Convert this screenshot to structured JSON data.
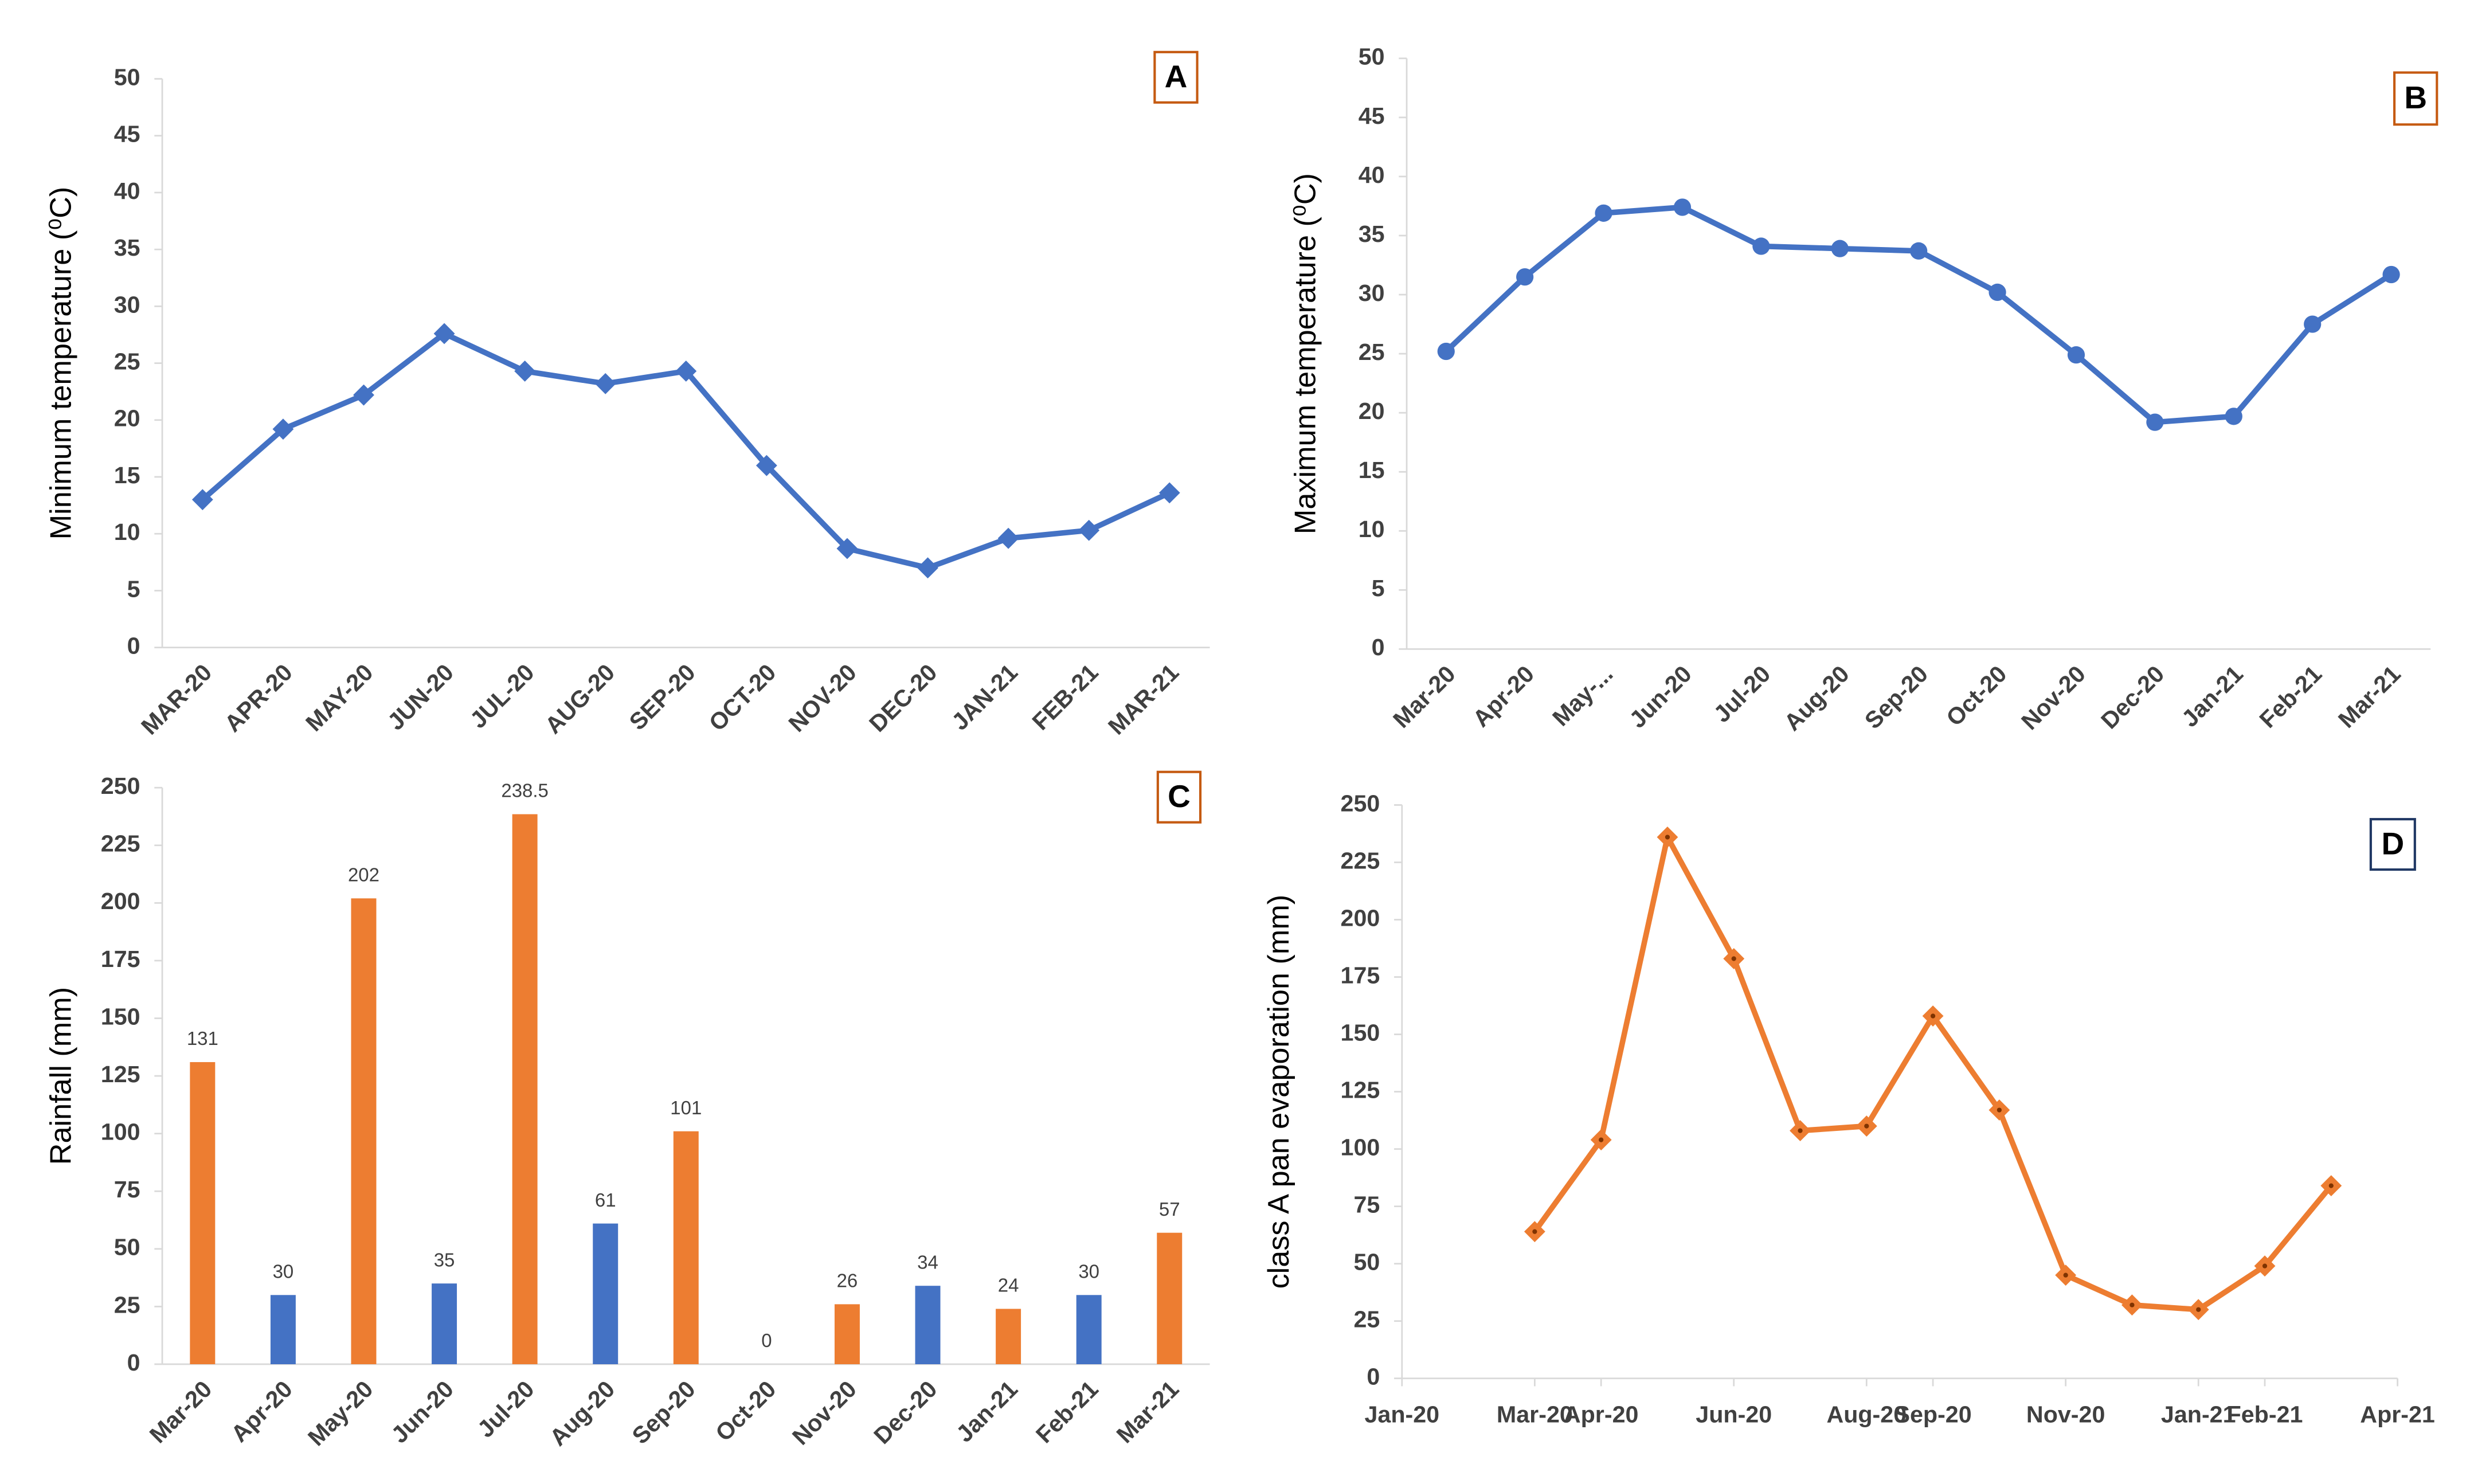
{
  "chart_data": [
    {
      "type": "line",
      "label": "A",
      "y_label": "Minimum temperature (⁰C)",
      "marker": "diamond",
      "color": "#4472c4",
      "categories": [
        "MAR-20",
        "APR-20",
        "MAY-20",
        "JUN-20",
        "JUL-20",
        "AUG-20",
        "SEP-20",
        "OCT-20",
        "NOV-20",
        "DEC-20",
        "JAN-21",
        "FEB-21",
        "MAR-21"
      ],
      "values": [
        13,
        19.2,
        22.2,
        27.6,
        24.3,
        23.2,
        24.3,
        16,
        8.7,
        7,
        9.6,
        10.3,
        13.6
      ],
      "ylim": [
        0,
        50
      ],
      "yticks": [
        0,
        5,
        10,
        15,
        20,
        25,
        30,
        35,
        40,
        45,
        50
      ]
    },
    {
      "type": "line",
      "label": "B",
      "y_label": "Maximum temperature (⁰C)",
      "marker": "circle",
      "color": "#4472c4",
      "categories": [
        "Mar-20",
        "Apr-20",
        "May-...",
        "Jun-20",
        "Jul-20",
        "Aug-20",
        "Sep-20",
        "Oct-20",
        "Nov-20",
        "Dec-20",
        "Jan-21",
        "Feb-21",
        "Mar-21"
      ],
      "values": [
        25.2,
        31.5,
        36.9,
        37.4,
        34.1,
        33.9,
        33.7,
        30.2,
        24.9,
        19.2,
        19.7,
        27.5,
        31.7
      ],
      "ylim": [
        0,
        50
      ],
      "yticks": [
        0,
        5,
        10,
        15,
        20,
        25,
        30,
        35,
        40,
        45,
        50
      ]
    },
    {
      "type": "bar",
      "label": "C",
      "y_label": "Rainfall (mm)",
      "categories": [
        "Mar-20",
        "Apr-20",
        "May-20",
        "Jun-20",
        "Jul-20",
        "Aug-20",
        "Sep-20",
        "Oct-20",
        "Nov-20",
        "Dec-20",
        "Jan-21",
        "Feb-21",
        "Mar-21"
      ],
      "values": [
        131,
        30,
        202,
        35,
        238.5,
        61,
        101,
        0,
        26,
        34,
        24,
        30,
        57
      ],
      "colors": [
        "#ed7d31",
        "#4472c4",
        "#ed7d31",
        "#4472c4",
        "#ed7d31",
        "#4472c4",
        "#ed7d31",
        "#4472c4",
        "#ed7d31",
        "#4472c4",
        "#ed7d31",
        "#4472c4",
        "#ed7d31"
      ],
      "ylim": [
        0,
        250
      ],
      "yticks": [
        0,
        25,
        50,
        75,
        100,
        125,
        150,
        175,
        200,
        225,
        250
      ]
    },
    {
      "type": "dateline",
      "label": "D",
      "y_label": "class A pan evaporation (mm)",
      "marker": "diamond",
      "color": "#ed7d31",
      "x": [
        "2020-03",
        "2020-04",
        "2020-05",
        "2020-06",
        "2020-07",
        "2020-08",
        "2020-09",
        "2020-10",
        "2020-11",
        "2020-12",
        "2021-01",
        "2021-02",
        "2021-03"
      ],
      "values": [
        64,
        104,
        236,
        183,
        108,
        110,
        158,
        117,
        45,
        32,
        30,
        49,
        84
      ],
      "xlim": [
        "2020-01",
        "2021-04"
      ],
      "xticks": [
        {
          "value": "2020-01",
          "label": "Jan-20"
        },
        {
          "value": "2020-03",
          "label": "Mar-20"
        },
        {
          "value": "2020-04",
          "label": "Apr-20"
        },
        {
          "value": "2020-06",
          "label": "Jun-20"
        },
        {
          "value": "2020-08",
          "label": "Aug-20"
        },
        {
          "value": "2020-09",
          "label": "Sep-20"
        },
        {
          "value": "2020-11",
          "label": "Nov-20"
        },
        {
          "value": "2021-01",
          "label": "Jan-21"
        },
        {
          "value": "2021-02",
          "label": "Feb-21"
        },
        {
          "value": "2021-04",
          "label": "Apr-21"
        }
      ],
      "ylim": [
        0,
        250
      ],
      "yticks": [
        0,
        25,
        50,
        75,
        100,
        125,
        150,
        175,
        200,
        225,
        250
      ]
    }
  ]
}
